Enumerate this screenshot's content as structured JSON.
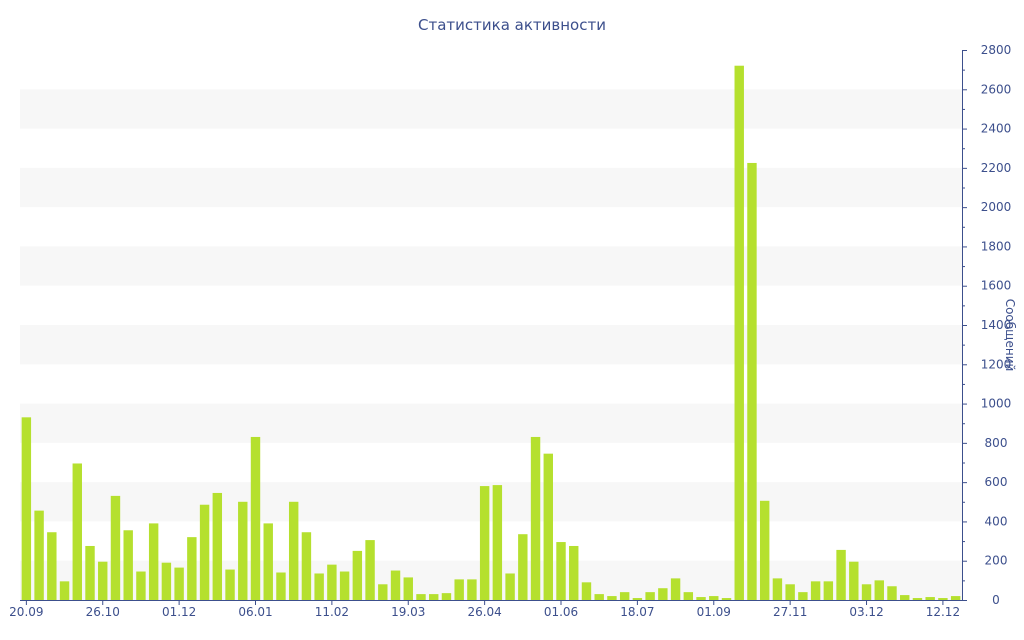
{
  "chart_data": {
    "type": "bar",
    "title": "Статистика активности",
    "xlabel": "",
    "ylabel": "Сообщений",
    "ylim": [
      0,
      2800
    ],
    "y_ticks": [
      0,
      200,
      400,
      600,
      800,
      1000,
      1200,
      1400,
      1600,
      1800,
      2000,
      2200,
      2400,
      2600,
      2800
    ],
    "x_tick_labels": [
      {
        "index": 0,
        "label": "20.09"
      },
      {
        "index": 6,
        "label": "26.10"
      },
      {
        "index": 12,
        "label": "01.12"
      },
      {
        "index": 18,
        "label": "06.01"
      },
      {
        "index": 24,
        "label": "11.02"
      },
      {
        "index": 30,
        "label": "19.03"
      },
      {
        "index": 36,
        "label": "26.04"
      },
      {
        "index": 42,
        "label": "01.06"
      },
      {
        "index": 48,
        "label": "18.07"
      },
      {
        "index": 54,
        "label": "01.09"
      },
      {
        "index": 60,
        "label": "27.11"
      },
      {
        "index": 66,
        "label": "03.12"
      },
      {
        "index": 72,
        "label": "12.12"
      }
    ],
    "axis_side": "right",
    "grid": "horizontal-bands",
    "bar_color": "#b5e02e",
    "values": [
      930,
      455,
      345,
      95,
      695,
      275,
      195,
      530,
      355,
      145,
      390,
      190,
      165,
      320,
      485,
      545,
      155,
      500,
      830,
      390,
      140,
      500,
      345,
      135,
      180,
      145,
      250,
      305,
      80,
      150,
      115,
      30,
      30,
      35,
      105,
      105,
      580,
      585,
      135,
      335,
      830,
      745,
      295,
      275,
      90,
      30,
      20,
      40,
      10,
      40,
      60,
      110,
      40,
      15,
      20,
      10,
      2720,
      2225,
      505,
      110,
      80,
      40,
      95,
      95,
      255,
      195,
      80,
      100,
      70,
      25,
      10,
      15,
      10,
      20
    ]
  }
}
